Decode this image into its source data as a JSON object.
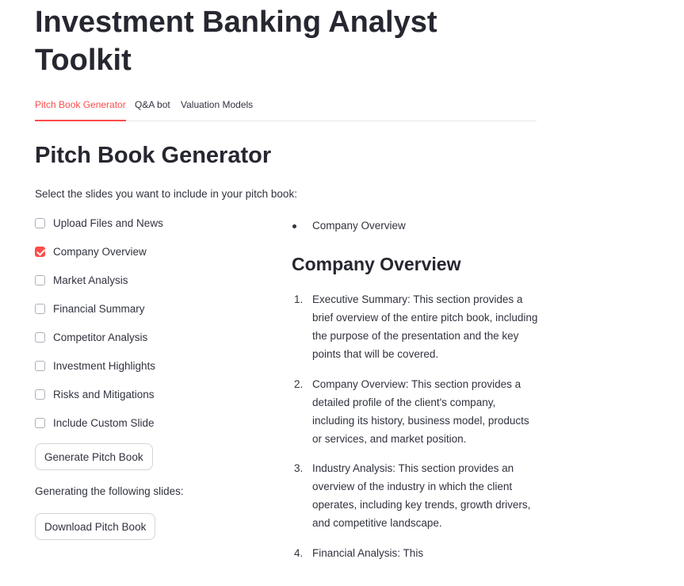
{
  "title": "Investment Banking Analyst Toolkit",
  "tabs": [
    "Pitch Book Generator",
    "Q&A bot",
    "Valuation Models"
  ],
  "section_title": "Pitch Book Generator",
  "instruction": "Select the slides you want to include in your pitch book:",
  "slides": [
    {
      "label": "Upload Files and News",
      "checked": false
    },
    {
      "label": "Company Overview",
      "checked": true
    },
    {
      "label": "Market Analysis",
      "checked": false
    },
    {
      "label": "Financial Summary",
      "checked": false
    },
    {
      "label": "Competitor Analysis",
      "checked": false
    },
    {
      "label": "Investment Highlights",
      "checked": false
    },
    {
      "label": "Risks and Mitigations",
      "checked": false
    },
    {
      "label": "Include Custom Slide",
      "checked": false
    }
  ],
  "generate_button": "Generate Pitch Book",
  "generating_text": "Generating the following slides:",
  "download_button": "Download Pitch Book",
  "selected_slides": [
    "Company Overview"
  ],
  "preview": {
    "heading": "Company Overview",
    "items": [
      {
        "num": "1.",
        "text": "Executive Summary: This section provides a brief overview of the entire pitch book, including the purpose of the presentation and the key points that will be covered."
      },
      {
        "num": "2.",
        "text": "Company Overview: This section provides a detailed profile of the client's company, including its history, business model, products or services, and market position."
      },
      {
        "num": "3.",
        "text": "Industry Analysis: This section provides an overview of the industry in which the client operates, including key trends, growth drivers, and competitive landscape."
      },
      {
        "num": "4.",
        "text": "Financial Analysis: This"
      }
    ]
  },
  "colors": {
    "accent": "#ff4b4b",
    "text": "#31333F",
    "heading": "#262730"
  }
}
